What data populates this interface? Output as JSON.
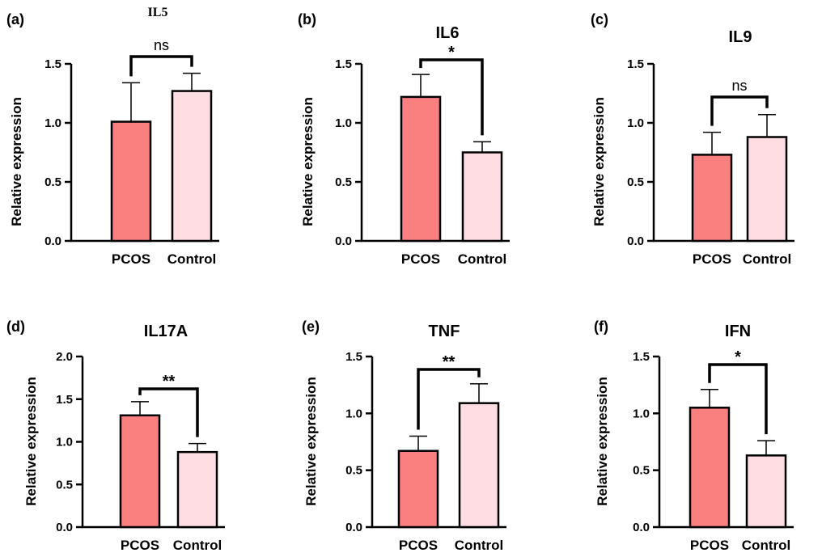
{
  "colors": {
    "pcos_fill": "#fa8080",
    "control_fill": "#ffdde2",
    "stroke": "#000000"
  },
  "chart_data": [
    {
      "type": "bar",
      "panel_label": "(a)",
      "title": "IL5",
      "ylabel": "Relative expression",
      "categories": [
        "PCOS",
        "Control"
      ],
      "values": [
        1.01,
        1.27
      ],
      "errors": [
        0.33,
        0.15
      ],
      "ylim": [
        0,
        1.5
      ],
      "yticks": [
        "0.0",
        "0.5",
        "1.0",
        "1.5"
      ],
      "significance": "ns"
    },
    {
      "type": "bar",
      "panel_label": "(b)",
      "title": "IL6",
      "ylabel": "Relative expression",
      "categories": [
        "PCOS",
        "Control"
      ],
      "values": [
        1.22,
        0.75
      ],
      "errors": [
        0.19,
        0.09
      ],
      "ylim": [
        0,
        1.5
      ],
      "yticks": [
        "0.0",
        "0.5",
        "1.0",
        "1.5"
      ],
      "significance": "*"
    },
    {
      "type": "bar",
      "panel_label": "(c)",
      "title": "IL9",
      "ylabel": "Relative expression",
      "categories": [
        "PCOS",
        "Control"
      ],
      "values": [
        0.73,
        0.88
      ],
      "errors": [
        0.19,
        0.19
      ],
      "ylim": [
        0,
        1.5
      ],
      "yticks": [
        "0.0",
        "0.5",
        "1.0",
        "1.5"
      ],
      "significance": "ns"
    },
    {
      "type": "bar",
      "panel_label": "(d)",
      "title": "IL17A",
      "ylabel": "Relative expression",
      "categories": [
        "PCOS",
        "Control"
      ],
      "values": [
        1.31,
        0.88
      ],
      "errors": [
        0.16,
        0.1
      ],
      "ylim": [
        0,
        2.0
      ],
      "yticks": [
        "0.0",
        "0.5",
        "1.0",
        "1.5",
        "2.0"
      ],
      "significance": "**"
    },
    {
      "type": "bar",
      "panel_label": "(e)",
      "title": "TNF",
      "ylabel": "Relative expression",
      "categories": [
        "PCOS",
        "Control"
      ],
      "values": [
        0.67,
        1.09
      ],
      "errors": [
        0.13,
        0.17
      ],
      "ylim": [
        0,
        1.5
      ],
      "yticks": [
        "0.0",
        "0.5",
        "1.0",
        "1.5"
      ],
      "significance": "**"
    },
    {
      "type": "bar",
      "panel_label": "(f)",
      "title": "IFN",
      "ylabel": "Relative expression",
      "categories": [
        "PCOS",
        "Control"
      ],
      "values": [
        1.05,
        0.63
      ],
      "errors": [
        0.16,
        0.13
      ],
      "ylim": [
        0,
        1.5
      ],
      "yticks": [
        "0.0",
        "0.5",
        "1.0",
        "1.5"
      ],
      "significance": "*"
    }
  ]
}
